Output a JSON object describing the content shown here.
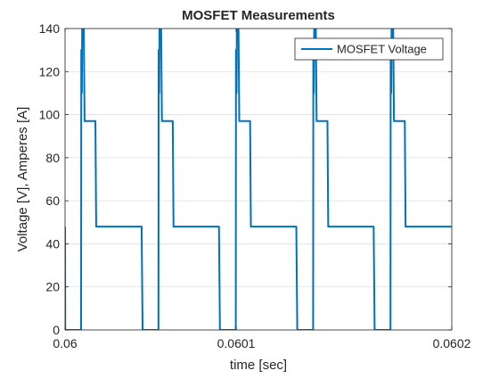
{
  "chart_data": {
    "type": "line",
    "title": "MOSFET Measurements",
    "xlabel": "time [sec]",
    "ylabel": "Voltage [V], Amperes [A]",
    "xlim": [
      0.06,
      0.0602
    ],
    "xticks": [
      0.06,
      {
        "value": 0.0600885,
        "label": "0.0601"
      },
      0.0602
    ],
    "ylim": [
      0,
      140
    ],
    "yticks": [
      0,
      20,
      40,
      60,
      80,
      100,
      120,
      140
    ],
    "grid": true,
    "legend": "northeast",
    "x": [
      0.06,
      0.0600001,
      0.0600083,
      0.0600084,
      0.0600087,
      0.0600089,
      0.0600092,
      0.0600097,
      0.0600101,
      0.0600157,
      0.0600161,
      0.0600396,
      0.0600401,
      0.0600483,
      0.0600484,
      0.0600487,
      0.0600489,
      0.0600492,
      0.0600497,
      0.0600501,
      0.0600557,
      0.0600561,
      0.0600796,
      0.0600801,
      0.0600883,
      0.0600884,
      0.0600887,
      0.0600889,
      0.0600892,
      0.0600897,
      0.0600901,
      0.0600957,
      0.0600961,
      0.0601196,
      0.0601201,
      0.0601283,
      0.0601284,
      0.0601287,
      0.0601289,
      0.0601292,
      0.0601297,
      0.0601301,
      0.0601357,
      0.0601361,
      0.0601596,
      0.0601601,
      0.0601683,
      0.0601684,
      0.0601687,
      0.0601689,
      0.0601692,
      0.0601697,
      0.0601701,
      0.0601757,
      0.0601761,
      0.0602
    ],
    "series": [
      {
        "name": "MOSFET Voltage",
        "color": "#0072bd",
        "values": [
          48,
          0,
          0,
          130,
          110,
          150,
          160,
          140,
          97,
          97,
          48,
          48,
          0,
          0,
          130,
          110,
          150,
          160,
          140,
          97,
          97,
          48,
          48,
          0,
          0,
          130,
          110,
          150,
          160,
          140,
          97,
          97,
          48,
          48,
          0,
          0,
          130,
          110,
          150,
          160,
          140,
          97,
          97,
          48,
          48,
          0,
          0,
          130,
          110,
          150,
          160,
          140,
          97,
          97,
          48,
          48
        ]
      }
    ]
  }
}
